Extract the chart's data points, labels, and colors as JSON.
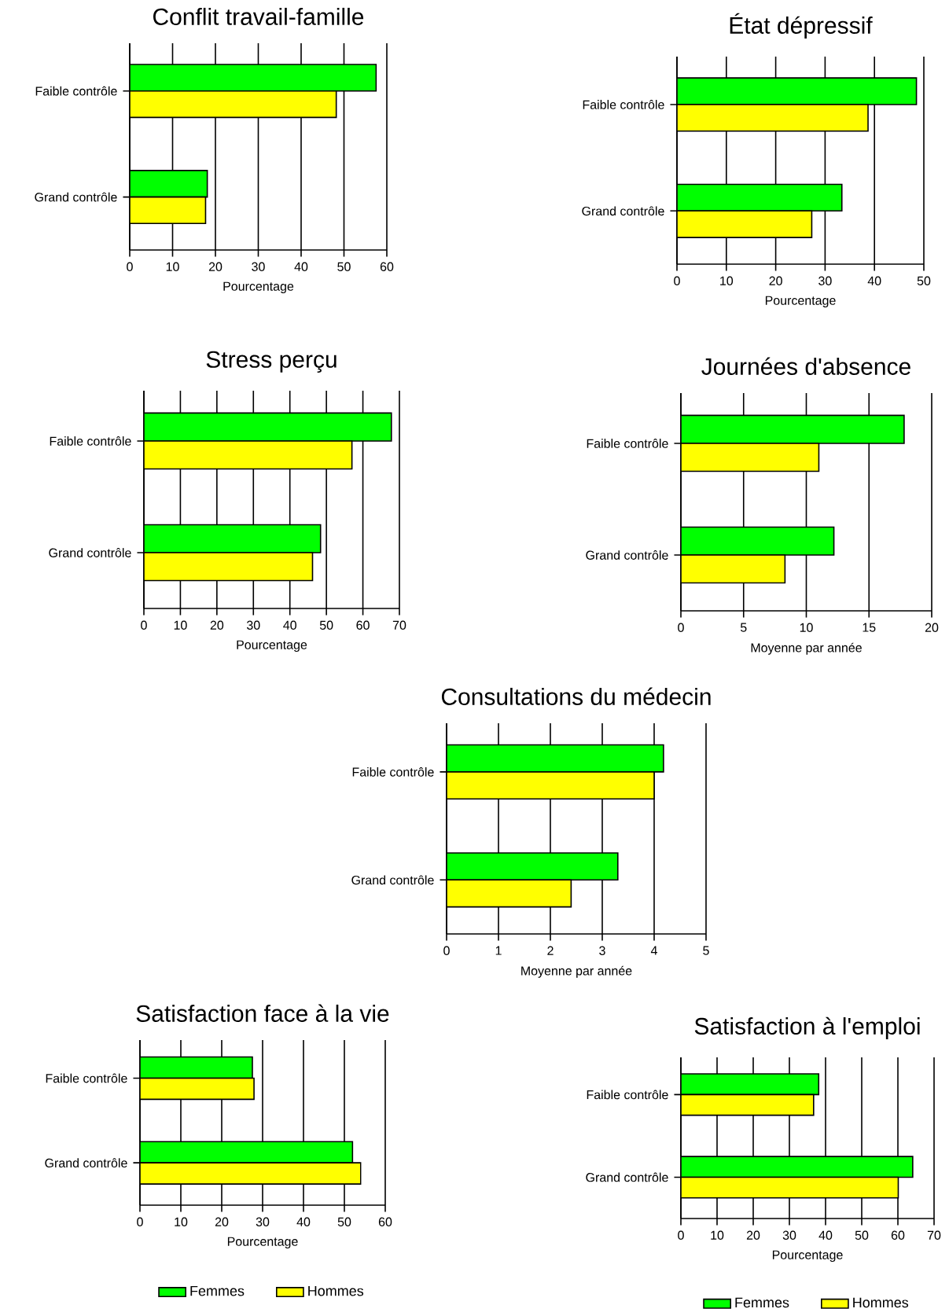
{
  "chart_data": [
    {
      "type": "bar",
      "orientation": "horizontal",
      "title": "Conflit travail-famille",
      "xlabel": "Pourcentage",
      "categories": [
        "Faible contrôle",
        "Grand contrôle"
      ],
      "xlim": [
        0,
        60
      ],
      "xticks": [
        0,
        10,
        20,
        30,
        40,
        50,
        60
      ],
      "grid": "x",
      "series": [
        {
          "color": "#00ff00",
          "values": [
            57.5,
            18.1
          ]
        },
        {
          "color": "#ffff00",
          "values": [
            48.2,
            17.7
          ]
        }
      ]
    },
    {
      "type": "bar",
      "orientation": "horizontal",
      "title": "État dépressif",
      "xlabel": "Pourcentage",
      "categories": [
        "Faible contrôle",
        "Grand contrôle"
      ],
      "xlim": [
        0,
        50
      ],
      "xticks": [
        0,
        10,
        20,
        30,
        40,
        50
      ],
      "grid": "x",
      "series": [
        {
          "color": "#00ff00",
          "values": [
            48.5,
            33.4
          ]
        },
        {
          "color": "#ffff00",
          "values": [
            38.7,
            27.3
          ]
        }
      ]
    },
    {
      "type": "bar",
      "orientation": "horizontal",
      "title": "Stress perçu",
      "xlabel": "Pourcentage",
      "categories": [
        "Faible contrôle",
        "Grand contrôle"
      ],
      "xlim": [
        0,
        70
      ],
      "xticks": [
        0,
        10,
        20,
        30,
        40,
        50,
        60,
        70
      ],
      "grid": "x",
      "series": [
        {
          "color": "#00ff00",
          "values": [
            67.8,
            48.4
          ]
        },
        {
          "color": "#ffff00",
          "values": [
            57,
            46.2
          ]
        }
      ]
    },
    {
      "type": "bar",
      "orientation": "horizontal",
      "title": "Journées d'absence",
      "xlabel": "Moyenne par année",
      "categories": [
        "Faible contrôle",
        "Grand contrôle"
      ],
      "xlim": [
        0,
        20
      ],
      "xticks": [
        0,
        5,
        10,
        15,
        20
      ],
      "grid": "x",
      "series": [
        {
          "color": "#00ff00",
          "values": [
            17.8,
            12.2
          ]
        },
        {
          "color": "#ffff00",
          "values": [
            11,
            8.3
          ]
        }
      ]
    },
    {
      "type": "bar",
      "orientation": "horizontal",
      "title": "Consultations du médecin",
      "xlabel": "Moyenne par année",
      "categories": [
        "Faible contrôle",
        "Grand contrôle"
      ],
      "xlim": [
        0,
        5
      ],
      "xticks": [
        0,
        1,
        2,
        3,
        4,
        5
      ],
      "grid": "x",
      "series": [
        {
          "color": "#00ff00",
          "values": [
            4.18,
            3.3
          ]
        },
        {
          "color": "#ffff00",
          "values": [
            4.0,
            2.4
          ]
        }
      ]
    },
    {
      "type": "bar",
      "orientation": "horizontal",
      "title": "Satisfaction face à la vie",
      "xlabel": "Pourcentage",
      "categories": [
        "Faible contrôle",
        "Grand contrôle"
      ],
      "xlim": [
        0,
        60
      ],
      "xticks": [
        0,
        10,
        20,
        30,
        40,
        50,
        60
      ],
      "grid": "x",
      "legend": "bottom",
      "series": [
        {
          "name": "Femmes",
          "color": "#00ff00",
          "values": [
            27.5,
            52
          ]
        },
        {
          "name": "Hommes",
          "color": "#ffff00",
          "values": [
            27.9,
            54
          ]
        }
      ]
    },
    {
      "type": "bar",
      "orientation": "horizontal",
      "title": "Satisfaction à l'emploi",
      "xlabel": "Pourcentage",
      "categories": [
        "Faible contrôle",
        "Grand contrôle"
      ],
      "xlim": [
        0,
        70
      ],
      "xticks": [
        0,
        10,
        20,
        30,
        40,
        50,
        60,
        70
      ],
      "grid": "x",
      "legend": "bottom",
      "series": [
        {
          "name": "Femmes",
          "color": "#00ff00",
          "values": [
            38.1,
            64.1
          ]
        },
        {
          "name": "Hommes",
          "color": "#ffff00",
          "values": [
            36.7,
            60.1
          ]
        }
      ]
    }
  ]
}
